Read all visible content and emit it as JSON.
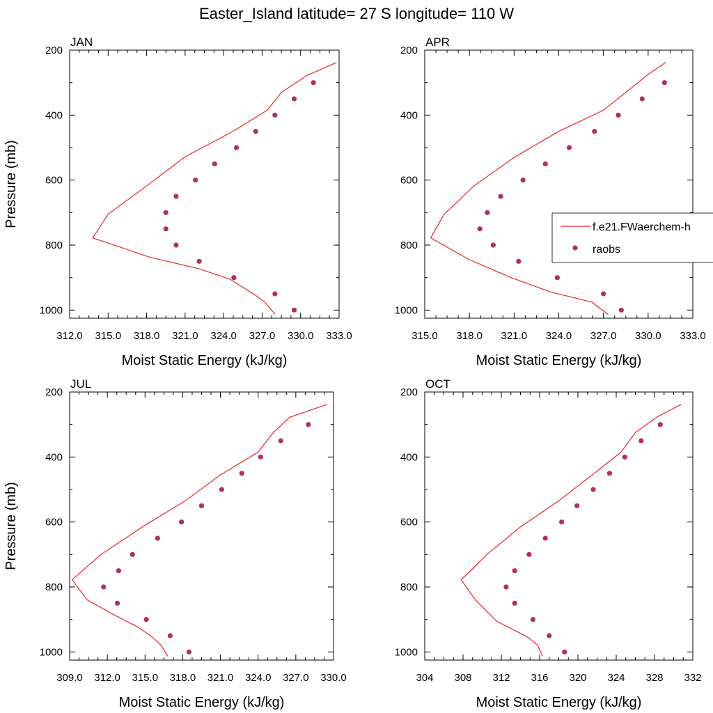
{
  "title": "Easter_Island  latitude= 27 S longitude= 110 W",
  "colors": {
    "model": "#e8242a",
    "obs": "#b03060"
  },
  "legend": {
    "model_label": "f.e21.FWaerchem-h",
    "obs_label": "raobs"
  },
  "chart_data": [
    {
      "type": "line",
      "panel": "JAN",
      "xlabel": "Moist Static Energy (kJ/kg)",
      "ylabel": "Pressure (mb)",
      "xlim": [
        312,
        333
      ],
      "xticks": [
        "312.0",
        "315.0",
        "318.0",
        "321.0",
        "324.0",
        "327.0",
        "330.0",
        "333.0"
      ],
      "ylim": [
        200,
        1025
      ],
      "yticks": [
        "200",
        "400",
        "600",
        "800",
        "1000"
      ],
      "y_reversed": true,
      "grid": false,
      "legend": false,
      "model": {
        "x": [
          328.0,
          327.2,
          326.5,
          324.5,
          322.0,
          318.3,
          313.8,
          315.0,
          318.2,
          321.0,
          324.5,
          327.4,
          328.5,
          330.5,
          332.8
        ],
        "y": [
          1013,
          975,
          955,
          905,
          872,
          838,
          778,
          705,
          612,
          528,
          455,
          385,
          330,
          278,
          238
        ]
      },
      "obs": {
        "x": [
          329.5,
          328.0,
          324.8,
          322.1,
          320.3,
          319.5,
          319.5,
          320.3,
          321.8,
          323.3,
          325.0,
          326.5,
          328.0,
          329.5,
          331.0
        ],
        "y": [
          1000,
          950,
          900,
          850,
          800,
          750,
          700,
          650,
          600,
          550,
          500,
          450,
          400,
          350,
          300
        ]
      }
    },
    {
      "type": "line",
      "panel": "APR",
      "xlabel": "Moist Static Energy (kJ/kg)",
      "ylabel": "",
      "xlim": [
        315,
        333
      ],
      "xticks": [
        "315.0",
        "318.0",
        "321.0",
        "324.0",
        "327.0",
        "330.0",
        "333.0"
      ],
      "ylim": [
        200,
        1025
      ],
      "yticks": [
        "200",
        "400",
        "600",
        "800",
        "1000"
      ],
      "y_reversed": true,
      "grid": false,
      "legend": true,
      "legend_position": "right",
      "model": {
        "x": [
          327.3,
          326.2,
          323.5,
          320.8,
          318.0,
          315.4,
          316.3,
          318.3,
          321.0,
          324.0,
          327.0,
          328.5,
          330.0,
          331.2
        ],
        "y": [
          1013,
          975,
          945,
          900,
          845,
          778,
          705,
          618,
          530,
          450,
          385,
          330,
          275,
          237
        ]
      },
      "obs": {
        "x": [
          328.2,
          327.0,
          323.9,
          321.3,
          319.6,
          318.7,
          319.2,
          320.1,
          321.6,
          323.1,
          324.7,
          326.4,
          328.0,
          329.6,
          331.1
        ],
        "y": [
          1000,
          950,
          900,
          850,
          800,
          750,
          700,
          650,
          600,
          550,
          500,
          450,
          400,
          350,
          300
        ]
      }
    },
    {
      "type": "line",
      "panel": "JUL",
      "xlabel": "Moist Static Energy (kJ/kg)",
      "ylabel": "Pressure (mb)",
      "xlim": [
        309,
        330
      ],
      "xticks": [
        "309.0",
        "312.0",
        "315.0",
        "318.0",
        "321.0",
        "324.0",
        "327.0",
        "330.0"
      ],
      "ylim": [
        200,
        1025
      ],
      "yticks": [
        "200",
        "400",
        "600",
        "800",
        "1000"
      ],
      "y_reversed": true,
      "grid": false,
      "legend": false,
      "model": {
        "x": [
          316.8,
          316.3,
          315.6,
          314.5,
          312.5,
          310.4,
          309.2,
          311.5,
          315.0,
          318.2,
          321.0,
          324.0,
          325.2,
          326.5,
          329.5
        ],
        "y": [
          1013,
          980,
          955,
          925,
          885,
          840,
          778,
          700,
          610,
          535,
          455,
          385,
          325,
          278,
          238
        ]
      },
      "obs": {
        "x": [
          318.5,
          317.0,
          315.1,
          312.8,
          311.7,
          312.9,
          314.0,
          316.0,
          317.9,
          319.5,
          321.1,
          322.7,
          324.2,
          325.8,
          328.0
        ],
        "y": [
          1000,
          950,
          900,
          850,
          800,
          750,
          700,
          650,
          600,
          550,
          500,
          450,
          400,
          350,
          300
        ]
      }
    },
    {
      "type": "line",
      "panel": "OCT",
      "xlabel": "Moist Static Energy (kJ/kg)",
      "ylabel": "",
      "xlim": [
        304,
        332
      ],
      "xticks": [
        "304",
        "308",
        "312",
        "316",
        "320",
        "324",
        "328",
        "332"
      ],
      "ylim": [
        200,
        1025
      ],
      "yticks": [
        "200",
        "400",
        "600",
        "800",
        "1000"
      ],
      "y_reversed": true,
      "grid": false,
      "legend": false,
      "model": {
        "x": [
          316.3,
          315.8,
          314.8,
          311.5,
          309.3,
          307.8,
          310.5,
          314.0,
          318.0,
          321.5,
          324.5,
          326.0,
          328.2,
          330.8
        ],
        "y": [
          1013,
          980,
          955,
          905,
          840,
          778,
          700,
          615,
          535,
          455,
          385,
          325,
          278,
          238
        ]
      },
      "obs": {
        "x": [
          318.6,
          317.0,
          315.3,
          313.4,
          312.5,
          313.4,
          314.9,
          316.6,
          318.3,
          319.9,
          321.6,
          323.3,
          324.9,
          326.6,
          328.6
        ],
        "y": [
          1000,
          950,
          900,
          850,
          800,
          750,
          700,
          650,
          600,
          550,
          500,
          450,
          400,
          350,
          300
        ]
      }
    }
  ]
}
